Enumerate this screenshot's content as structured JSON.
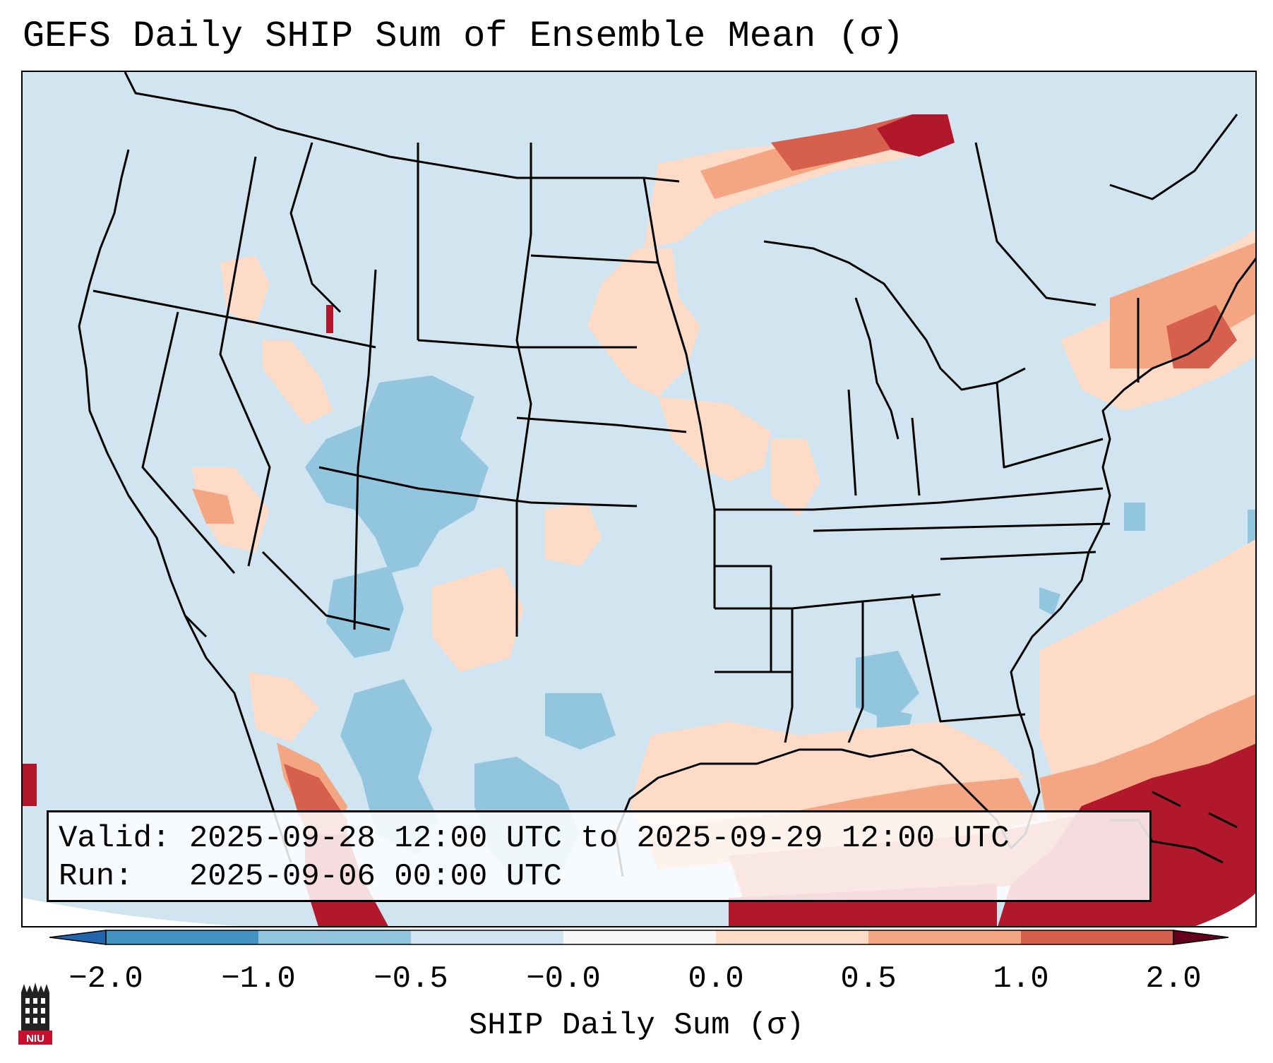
{
  "title": "GEFS Daily SHIP Sum of Ensemble Mean (σ)",
  "info": {
    "valid_line": "Valid: 2025-09-28 12:00 UTC to 2025-09-29 12:00 UTC",
    "run_line": "Run:   2025-09-06 00:00 UTC"
  },
  "colorbar": {
    "label": "SHIP Daily Sum (σ)",
    "ticks": [
      "−2.0",
      "−1.0",
      "−0.5",
      "−0.0",
      "0.0",
      "0.5",
      "1.0",
      "2.0"
    ],
    "colors": [
      "#4393c3",
      "#92c5de",
      "#d1e5f0",
      "#f7f7f7",
      "#fddbc7",
      "#f4a582",
      "#d6604d",
      "#b2182b"
    ]
  },
  "logo": {
    "text": "NIU"
  },
  "map_legend": {
    "ocean_fill": "#d1e5f0",
    "outside_fill": "#ffffff"
  }
}
